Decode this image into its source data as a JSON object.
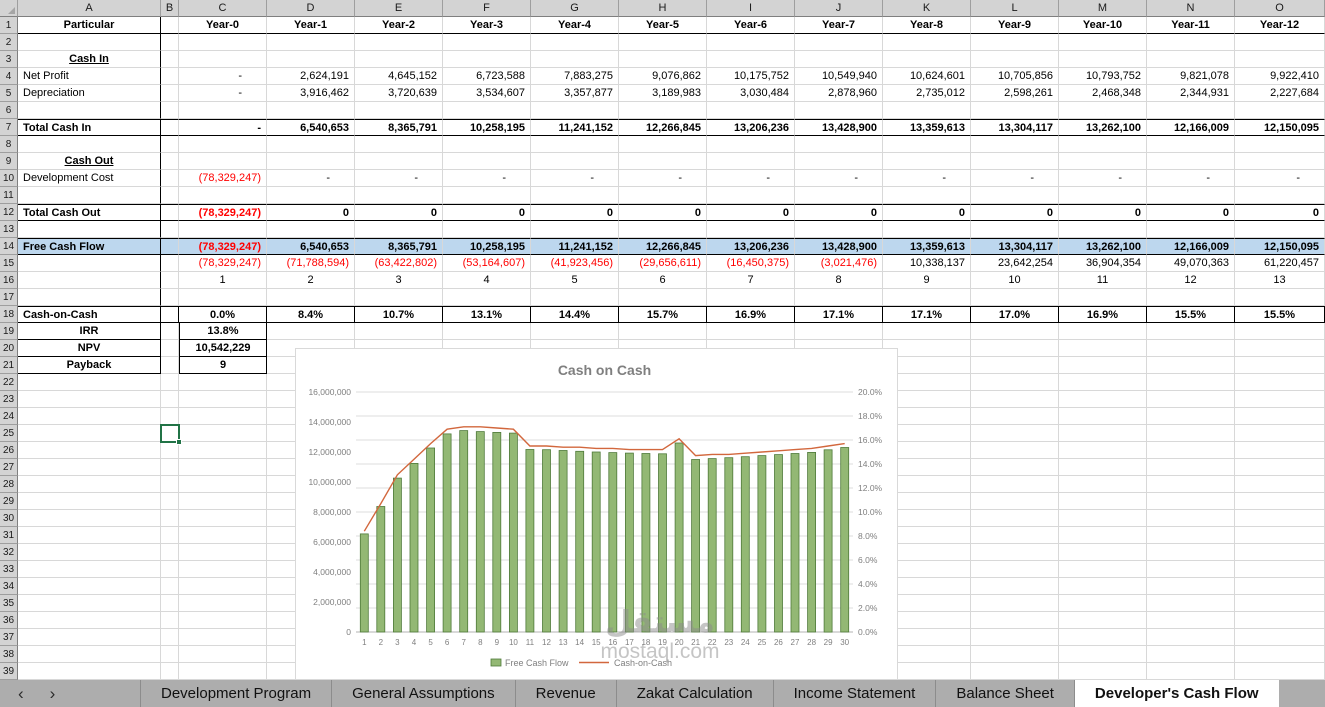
{
  "meta": {
    "active_cell": "B25",
    "selection_color": "#217346"
  },
  "columns": [
    "A",
    "B",
    "C",
    "D",
    "E",
    "F",
    "G",
    "H",
    "I",
    "J",
    "K",
    "L",
    "M",
    "N",
    "O"
  ],
  "row_count": 39,
  "table": {
    "rows": [
      {
        "r": 1,
        "label": "Particular",
        "cls": "hdr",
        "values": [
          "Year-0",
          "Year-1",
          "Year-2",
          "Year-3",
          "Year-4",
          "Year-5",
          "Year-6",
          "Year-7",
          "Year-8",
          "Year-9",
          "Year-10",
          "Year-11",
          "Year-12"
        ]
      },
      {
        "r": 3,
        "label": "Cash In",
        "cls": "section"
      },
      {
        "r": 4,
        "label": "Net Profit",
        "cls": "num",
        "values": [
          "-",
          "2,624,191",
          "4,645,152",
          "6,723,588",
          "7,883,275",
          "9,076,862",
          "10,175,752",
          "10,549,940",
          "10,624,601",
          "10,705,856",
          "10,793,752",
          "9,821,078",
          "9,922,410"
        ]
      },
      {
        "r": 5,
        "label": "Depreciation",
        "cls": "num",
        "values": [
          "-",
          "3,916,462",
          "3,720,639",
          "3,534,607",
          "3,357,877",
          "3,189,983",
          "3,030,484",
          "2,878,960",
          "2,735,012",
          "2,598,261",
          "2,468,348",
          "2,344,931",
          "2,227,684"
        ]
      },
      {
        "r": 7,
        "label": "Total Cash In",
        "cls": "total",
        "values": [
          "-",
          "6,540,653",
          "8,365,791",
          "10,258,195",
          "11,241,152",
          "12,266,845",
          "13,206,236",
          "13,428,900",
          "13,359,613",
          "13,304,117",
          "13,262,100",
          "12,166,009",
          "12,150,095"
        ]
      },
      {
        "r": 9,
        "label": "Cash Out",
        "cls": "section"
      },
      {
        "r": 10,
        "label": "Development Cost",
        "cls": "num",
        "values": [
          "(78,329,247)",
          "-",
          "-",
          "-",
          "-",
          "-",
          "-",
          "-",
          "-",
          "-",
          "-",
          "-",
          "-"
        ]
      },
      {
        "r": 12,
        "label": "Total Cash Out",
        "cls": "total",
        "values": [
          "(78,329,247)",
          "0",
          "0",
          "0",
          "0",
          "0",
          "0",
          "0",
          "0",
          "0",
          "0",
          "0",
          "0"
        ]
      },
      {
        "r": 14,
        "label": "Free Cash Flow",
        "cls": "fcf",
        "values": [
          "(78,329,247)",
          "6,540,653",
          "8,365,791",
          "10,258,195",
          "11,241,152",
          "12,266,845",
          "13,206,236",
          "13,428,900",
          "13,359,613",
          "13,304,117",
          "13,262,100",
          "12,166,009",
          "12,150,095"
        ]
      },
      {
        "r": 15,
        "label": "",
        "cls": "cum",
        "values": [
          "(78,329,247)",
          "(71,788,594)",
          "(63,422,802)",
          "(53,164,607)",
          "(41,923,456)",
          "(29,656,611)",
          "(16,450,375)",
          "(3,021,476)",
          "10,338,137",
          "23,642,254",
          "36,904,354",
          "49,070,363",
          "61,220,457"
        ]
      },
      {
        "r": 16,
        "label": "",
        "cls": "center",
        "values": [
          "1",
          "2",
          "3",
          "4",
          "5",
          "6",
          "7",
          "8",
          "9",
          "10",
          "11",
          "12",
          "13"
        ]
      },
      {
        "r": 18,
        "label": "Cash-on-Cash",
        "cls": "coc",
        "values": [
          "0.0%",
          "8.4%",
          "10.7%",
          "13.1%",
          "14.4%",
          "15.7%",
          "16.9%",
          "17.1%",
          "17.1%",
          "17.0%",
          "16.9%",
          "15.5%",
          "15.5%"
        ]
      },
      {
        "r": 19,
        "label": "IRR",
        "cls": "stat",
        "values": [
          "13.8%"
        ]
      },
      {
        "r": 20,
        "label": "NPV",
        "cls": "stat",
        "values": [
          "10,542,229"
        ]
      },
      {
        "r": 21,
        "label": "Payback",
        "cls": "stat",
        "values": [
          "9"
        ]
      }
    ]
  },
  "chart_data": {
    "type": "combo",
    "title": "Cash on Cash",
    "x": [
      1,
      2,
      3,
      4,
      5,
      6,
      7,
      8,
      9,
      10,
      11,
      12,
      13,
      14,
      15,
      16,
      17,
      18,
      19,
      20,
      21,
      22,
      23,
      24,
      25,
      26,
      27,
      28,
      29,
      30
    ],
    "series": [
      {
        "name": "Free Cash Flow",
        "type": "bar",
        "axis": "left",
        "values": [
          6540653,
          8365791,
          10258195,
          11241152,
          12266845,
          13206236,
          13428900,
          13359613,
          13304117,
          13262100,
          12166009,
          12150095,
          12100000,
          12050000,
          12000000,
          11960000,
          11930000,
          11900000,
          11880000,
          12600000,
          11500000,
          11560000,
          11620000,
          11690000,
          11760000,
          11830000,
          11900000,
          11970000,
          12150000,
          12300000
        ]
      },
      {
        "name": "Cash-on-Cash",
        "type": "line",
        "axis": "right",
        "values": [
          8.4,
          10.7,
          13.1,
          14.4,
          15.7,
          16.9,
          17.1,
          17.1,
          17.0,
          16.9,
          15.5,
          15.5,
          15.4,
          15.4,
          15.3,
          15.3,
          15.2,
          15.2,
          15.2,
          16.1,
          14.7,
          14.8,
          14.8,
          14.9,
          15.0,
          15.1,
          15.2,
          15.3,
          15.5,
          15.7
        ]
      }
    ],
    "left_axis": {
      "min": 0,
      "max": 16000000,
      "ticks": [
        0,
        2000000,
        4000000,
        6000000,
        8000000,
        10000000,
        12000000,
        14000000,
        16000000
      ]
    },
    "right_axis": {
      "min": 0,
      "max": 20,
      "ticks": [
        0,
        2,
        4,
        6,
        8,
        10,
        12,
        14,
        16,
        18,
        20
      ],
      "suffix": "%"
    },
    "legend_position": "bottom",
    "grid": true,
    "colors": {
      "bar_fill": "#93b874",
      "bar_border": "#4f7a3a",
      "line": "#d2673d",
      "axis_text": "#7f7f7f",
      "grid": "#dcdcdc",
      "title": "#7f7f7f"
    }
  },
  "watermark": {
    "line1": "مستقل",
    "line2": "mostaql.com"
  },
  "tabs": {
    "nav_prev": "‹",
    "nav_next": "›",
    "items": [
      "Development Program",
      "General Assumptions",
      "Revenue",
      "Zakat Calculation",
      "Income Statement",
      "Balance Sheet",
      "Developer's Cash Flow"
    ],
    "active_index": 6
  }
}
